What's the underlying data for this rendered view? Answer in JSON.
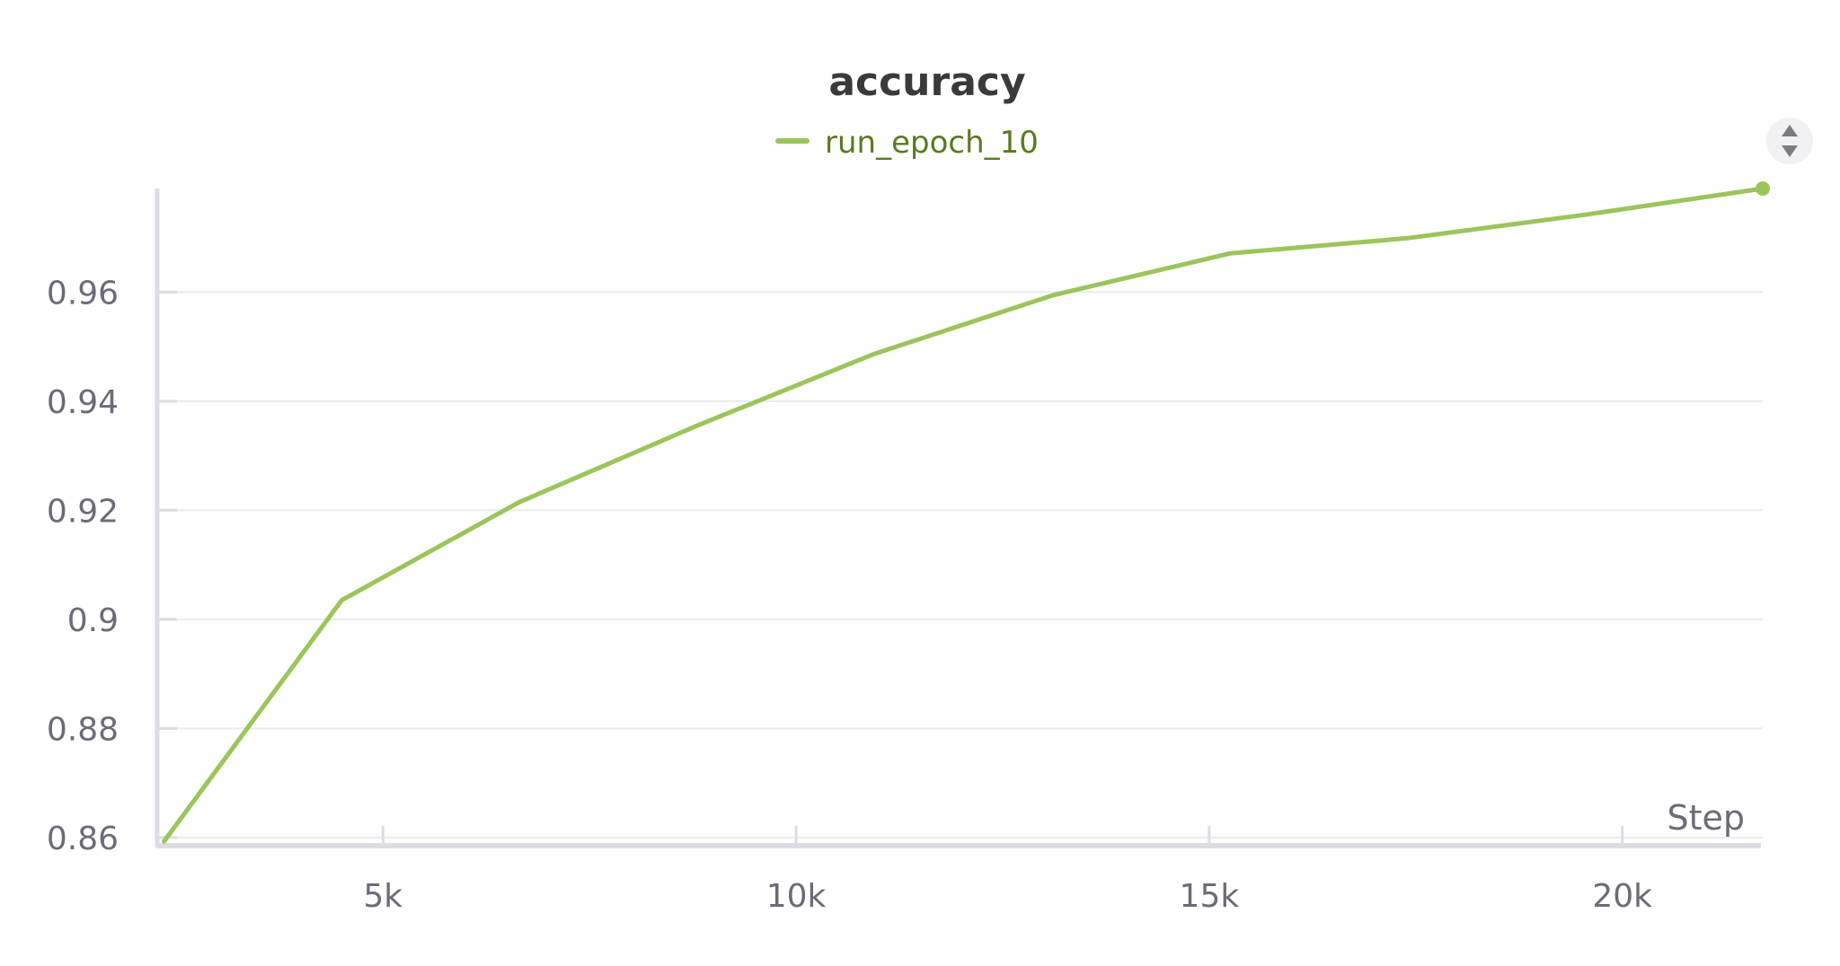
{
  "chart_data": {
    "type": "line",
    "title": "accuracy",
    "xlabel": "Step",
    "ylabel": "",
    "xlim": [
      2300,
      21700
    ],
    "ylim": [
      0.8585,
      0.979
    ],
    "x_ticks": [
      5000,
      10000,
      15000,
      20000
    ],
    "x_tick_labels": [
      "5k",
      "10k",
      "15k",
      "20k"
    ],
    "y_ticks": [
      0.86,
      0.88,
      0.9,
      0.92,
      0.94,
      0.96
    ],
    "y_tick_labels": [
      "0.86",
      "0.88",
      "0.9",
      "0.92",
      "0.94",
      "0.96"
    ],
    "grid": true,
    "legend_position": "top-center",
    "series": [
      {
        "name": "run_epoch_10",
        "color": "#9bc55a",
        "legend_text_color": "#5a7a1e",
        "x": [
          2350,
          4500,
          6650,
          8800,
          10950,
          13100,
          15250,
          17400,
          19550,
          21700
        ],
        "y": [
          0.8593,
          0.9035,
          0.9215,
          0.9355,
          0.9487,
          0.9594,
          0.9671,
          0.9699,
          0.9742,
          0.979
        ]
      }
    ]
  },
  "controls": {
    "sort_icon": "sort-up-down-icon"
  }
}
